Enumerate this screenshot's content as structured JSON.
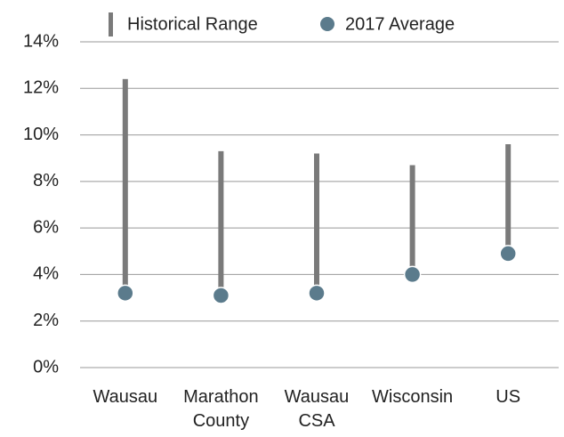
{
  "chart_data": {
    "type": "range_dot",
    "categories": [
      "Wausau",
      "Marathon County",
      "Wausau CSA",
      "Wisconsin",
      "US"
    ],
    "series": [
      {
        "name": "Historical Range",
        "color": "#7a7a7a",
        "low": [
          3.2,
          3.1,
          3.2,
          4.0,
          4.9
        ],
        "high": [
          12.4,
          9.3,
          9.2,
          8.7,
          9.6
        ]
      },
      {
        "name": "2017 Average",
        "color": "#5b7b8c",
        "values": [
          3.2,
          3.1,
          3.2,
          4.0,
          4.9
        ]
      }
    ],
    "ylim": [
      0,
      14
    ],
    "yticks": [
      {
        "value": 0,
        "label": "0%"
      },
      {
        "value": 2,
        "label": "2%"
      },
      {
        "value": 4,
        "label": "4%"
      },
      {
        "value": 6,
        "label": "6%"
      },
      {
        "value": 8,
        "label": "8%"
      },
      {
        "value": 10,
        "label": "10%"
      },
      {
        "value": 12,
        "label": "12%"
      },
      {
        "value": 14,
        "label": "14%"
      }
    ],
    "grid": true,
    "legend": "top"
  }
}
